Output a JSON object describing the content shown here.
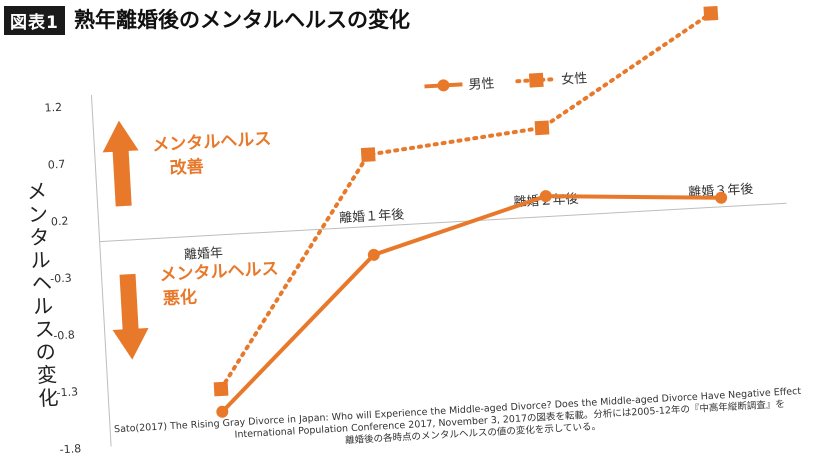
{
  "figure": {
    "badge": "図表1",
    "title": "熟年離婚後のメンタルヘルスの変化",
    "improve_label_line1": "メンタルヘルス",
    "improve_label_line2": "改善",
    "worsen_label_line1": "メンタルヘルス",
    "worsen_label_line2": "悪化",
    "source_line1": "Sato(2017) The Rising Gray Divorce in Japan: Who will Experience the Middle-aged Divorce? Does the Middle-aged Divorce Have Negative Effect",
    "source_line2": "International Population Conference 2017, November 3, 2017の図表を転載。分析には2005-12年の『中高年縦断調査』を",
    "source_line3": "離婚後の各時点のメンタルヘルスの値の変化を示している。",
    "colors": {
      "series": "#e8782a",
      "axis": "#bdbdbd",
      "text": "#333333"
    }
  },
  "chart_data": {
    "type": "line",
    "title": "熟年離婚後のメンタルヘルスの変化",
    "xlabel": "",
    "ylabel": "メンタルヘルスの変化",
    "categories": [
      "離婚年",
      "離婚1年後",
      "離婚2年後",
      "離婚3年後"
    ],
    "category_labels": [
      "離婚年",
      "離婚１年後",
      "離婚２年後",
      "離婚３年後"
    ],
    "y_ticks": [
      "1.2",
      "0.7",
      "0.2",
      "-0.3",
      "-0.8",
      "-1.3",
      "-1.8"
    ],
    "ylim": [
      -1.8,
      1.2
    ],
    "grid": false,
    "legend_position": "top-right",
    "series": [
      {
        "name": "男性",
        "style": "solid",
        "marker": "circle",
        "values": [
          -1.55,
          -0.25,
          0.18,
          0.08
        ]
      },
      {
        "name": "女性",
        "style": "dotted",
        "marker": "square",
        "values": [
          -1.35,
          0.63,
          0.78,
          1.7
        ]
      }
    ]
  }
}
